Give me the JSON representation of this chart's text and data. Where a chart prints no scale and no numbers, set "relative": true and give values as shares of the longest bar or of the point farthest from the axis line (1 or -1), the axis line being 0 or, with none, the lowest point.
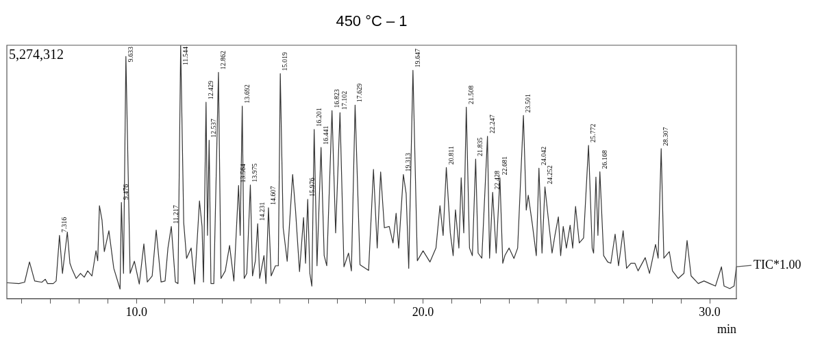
{
  "chart_data": {
    "type": "line",
    "title": "450 °C – 1",
    "xlabel": "min",
    "relative": true,
    "grid": false,
    "legend": false,
    "marker": "none",
    "line_style": "solid",
    "tick_labels": "x",
    "xlim": [
      5.48,
      30.93
    ],
    "xticks": [
      {
        "value": 6,
        "label": null
      },
      {
        "value": 7,
        "label": null
      },
      {
        "value": 8,
        "label": null
      },
      {
        "value": 9,
        "label": null
      },
      {
        "value": 10,
        "label": "10.0"
      },
      {
        "value": 11,
        "label": null
      },
      {
        "value": 12,
        "label": null
      },
      {
        "value": 13,
        "label": null
      },
      {
        "value": 14,
        "label": null
      },
      {
        "value": 15,
        "label": null
      },
      {
        "value": 16,
        "label": null
      },
      {
        "value": 17,
        "label": null
      },
      {
        "value": 18,
        "label": null
      },
      {
        "value": 19,
        "label": null
      },
      {
        "value": 20,
        "label": "20.0"
      },
      {
        "value": 21,
        "label": null
      },
      {
        "value": 22,
        "label": null
      },
      {
        "value": 23,
        "label": null
      },
      {
        "value": 24,
        "label": null
      },
      {
        "value": 25,
        "label": null
      },
      {
        "value": 26,
        "label": null
      },
      {
        "value": 27,
        "label": null
      },
      {
        "value": 28,
        "label": null
      },
      {
        "value": 29,
        "label": null
      },
      {
        "value": 30,
        "label": "30.0"
      }
    ],
    "series": [
      {
        "color": "#333333",
        "x": [
          5.48,
          5.9,
          6.1,
          6.27,
          6.45,
          6.7,
          6.82,
          6.9,
          7.1,
          7.2,
          7.316,
          7.42,
          7.59,
          7.68,
          7.75,
          7.9,
          8.05,
          8.18,
          8.3,
          8.45,
          8.59,
          8.65,
          8.71,
          8.8,
          8.88,
          9.04,
          9.21,
          9.43,
          9.476,
          9.55,
          9.633,
          9.78,
          9.93,
          10.1,
          10.26,
          10.38,
          10.55,
          10.69,
          10.86,
          11.0,
          11.1,
          11.217,
          11.36,
          11.45,
          11.544,
          11.65,
          11.75,
          11.91,
          12.03,
          12.2,
          12.29,
          12.34,
          12.429,
          12.48,
          12.537,
          12.6,
          12.7,
          12.862,
          12.95,
          13.1,
          13.25,
          13.4,
          13.564,
          13.62,
          13.692,
          13.76,
          13.85,
          13.975,
          14.05,
          14.15,
          14.231,
          14.3,
          14.45,
          14.52,
          14.607,
          14.7,
          14.85,
          14.95,
          15.019,
          15.12,
          15.26,
          15.45,
          15.55,
          15.69,
          15.83,
          15.9,
          15.976,
          16.05,
          16.12,
          16.201,
          16.3,
          16.441,
          16.55,
          16.64,
          16.823,
          16.95,
          17.102,
          17.24,
          17.4,
          17.5,
          17.629,
          17.8,
          18.1,
          18.27,
          18.4,
          18.52,
          18.65,
          18.82,
          18.95,
          19.06,
          19.15,
          19.313,
          19.41,
          19.5,
          19.647,
          19.8,
          20.0,
          20.24,
          20.45,
          20.59,
          20.7,
          20.811,
          20.95,
          21.05,
          21.13,
          21.25,
          21.33,
          21.42,
          21.508,
          21.62,
          21.72,
          21.835,
          21.92,
          22.05,
          22.247,
          22.32,
          22.428,
          22.55,
          22.681,
          22.78,
          22.86,
          23.0,
          23.17,
          23.3,
          23.501,
          23.6,
          23.67,
          23.81,
          23.95,
          24.042,
          24.15,
          24.252,
          24.36,
          24.5,
          24.6,
          24.72,
          24.8,
          24.89,
          25.0,
          25.13,
          25.22,
          25.32,
          25.45,
          25.6,
          25.772,
          25.9,
          25.95,
          26.03,
          26.1,
          26.168,
          26.3,
          26.44,
          26.55,
          26.7,
          26.82,
          26.98,
          27.1,
          27.25,
          27.39,
          27.5,
          27.75,
          27.9,
          28.11,
          28.2,
          28.307,
          28.4,
          28.59,
          28.7,
          28.9,
          29.1,
          29.21,
          29.35,
          29.6,
          29.8,
          30.0,
          30.2,
          30.41,
          30.5,
          30.7,
          30.85,
          30.93
        ],
        "values": [
          0.063,
          0.06,
          0.065,
          0.145,
          0.07,
          0.065,
          0.077,
          0.06,
          0.06,
          0.07,
          0.25,
          0.1,
          0.263,
          0.14,
          0.118,
          0.08,
          0.1,
          0.085,
          0.11,
          0.09,
          0.189,
          0.15,
          0.367,
          0.31,
          0.186,
          0.268,
          0.12,
          0.038,
          0.38,
          0.1,
          0.956,
          0.1,
          0.148,
          0.058,
          0.216,
          0.066,
          0.09,
          0.271,
          0.066,
          0.07,
          0.2,
          0.285,
          0.066,
          0.06,
          1,
          0.3,
          0.159,
          0.2,
          0.058,
          0.386,
          0.285,
          0.066,
          0.775,
          0.25,
          0.625,
          0.06,
          0.06,
          0.893,
          0.08,
          0.11,
          0.21,
          0.07,
          0.447,
          0.25,
          0.76,
          0.08,
          0.1,
          0.449,
          0.09,
          0.15,
          0.296,
          0.08,
          0.17,
          0.06,
          0.359,
          0.09,
          0.13,
          0.13,
          0.888,
          0.28,
          0.148,
          0.49,
          0.35,
          0.107,
          0.32,
          0.14,
          0.392,
          0.1,
          0.05,
          0.668,
          0.13,
          0.597,
          0.17,
          0.13,
          0.742,
          0.26,
          0.734,
          0.126,
          0.18,
          0.11,
          0.764,
          0.134,
          0.112,
          0.51,
          0.2,
          0.5,
          0.28,
          0.285,
          0.22,
          0.337,
          0.2,
          0.49,
          0.414,
          0.12,
          0.901,
          0.15,
          0.189,
          0.145,
          0.2,
          0.367,
          0.25,
          0.518,
          0.26,
          0.17,
          0.351,
          0.2,
          0.477,
          0.26,
          0.756,
          0.2,
          0.17,
          0.551,
          0.18,
          0.16,
          0.641,
          0.16,
          0.42,
          0.18,
          0.477,
          0.14,
          0.172,
          0.2,
          0.159,
          0.2,
          0.723,
          0.35,
          0.408,
          0.296,
          0.17,
          0.515,
          0.18,
          0.441,
          0.326,
          0.18,
          0.25,
          0.323,
          0.17,
          0.285,
          0.2,
          0.29,
          0.2,
          0.364,
          0.22,
          0.24,
          0.605,
          0.2,
          0.18,
          0.48,
          0.25,
          0.501,
          0.17,
          0.145,
          0.14,
          0.255,
          0.13,
          0.268,
          0.12,
          0.14,
          0.14,
          0.11,
          0.162,
          0.1,
          0.214,
          0.16,
          0.592,
          0.16,
          0.186,
          0.11,
          0.08,
          0.1,
          0.23,
          0.09,
          0.06,
          0.07,
          0.06,
          0.05,
          0.126,
          0.05,
          0.04,
          0.05,
          0.126
        ]
      }
    ],
    "annotations": [
      "5,274,312",
      "TIC*1.00",
      {
        "text": "7.316",
        "x": 7.316,
        "y": 0.25
      },
      {
        "text": "9.476",
        "x": 9.476,
        "y": 0.38
      },
      {
        "text": "9.633",
        "x": 9.633,
        "y": 0.956
      },
      {
        "text": "11.217",
        "x": 11.217,
        "y": 0.285
      },
      {
        "text": "11.544",
        "x": 11.544,
        "y": 1
      },
      {
        "text": "12.429",
        "x": 12.429,
        "y": 0.775
      },
      {
        "text": "12.537",
        "x": 12.537,
        "y": 0.625
      },
      {
        "text": "12.862",
        "x": 12.862,
        "y": 0.893
      },
      {
        "text": "13.564",
        "x": 13.564,
        "y": 0.447
      },
      {
        "text": "13.692",
        "x": 13.692,
        "y": 0.76
      },
      {
        "text": "13.975",
        "x": 13.975,
        "y": 0.449
      },
      {
        "text": "14.231",
        "x": 14.231,
        "y": 0.296
      },
      {
        "text": "14.607",
        "x": 14.607,
        "y": 0.359
      },
      {
        "text": "15.019",
        "x": 15.019,
        "y": 0.888
      },
      {
        "text": "15.976",
        "x": 15.976,
        "y": 0.392
      },
      {
        "text": "16.201",
        "x": 16.201,
        "y": 0.668
      },
      {
        "text": "16.441",
        "x": 16.441,
        "y": 0.597
      },
      {
        "text": "16.823",
        "x": 16.823,
        "y": 0.742
      },
      {
        "text": "17.102",
        "x": 17.102,
        "y": 0.734
      },
      {
        "text": "17.629",
        "x": 17.629,
        "y": 0.764
      },
      {
        "text": "19.313",
        "x": 19.313,
        "y": 0.49
      },
      {
        "text": "19.647",
        "x": 19.647,
        "y": 0.901
      },
      {
        "text": "20.811",
        "x": 20.811,
        "y": 0.518
      },
      {
        "text": "21.508",
        "x": 21.508,
        "y": 0.756
      },
      {
        "text": "21.835",
        "x": 21.835,
        "y": 0.551
      },
      {
        "text": "22.247",
        "x": 22.247,
        "y": 0.641
      },
      {
        "text": "22.428",
        "x": 22.428,
        "y": 0.42
      },
      {
        "text": "22.681",
        "x": 22.681,
        "y": 0.477
      },
      {
        "text": "23.501",
        "x": 23.501,
        "y": 0.723
      },
      {
        "text": "24.042",
        "x": 24.042,
        "y": 0.515
      },
      {
        "text": "24.252",
        "x": 24.252,
        "y": 0.441
      },
      {
        "text": "25.772",
        "x": 25.772,
        "y": 0.605
      },
      {
        "text": "26.168",
        "x": 26.168,
        "y": 0.501
      },
      {
        "text": "28.307",
        "x": 28.307,
        "y": 0.592
      }
    ]
  }
}
